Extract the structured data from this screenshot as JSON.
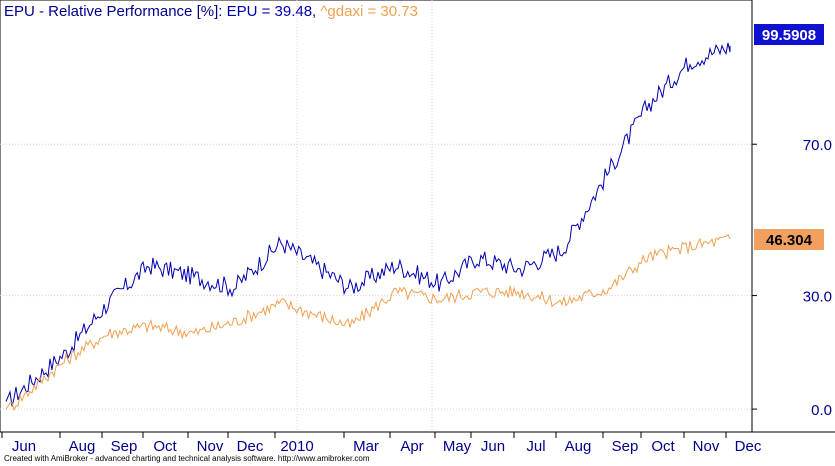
{
  "title": {
    "prefix": "EPU - Relative Performance [%]: ",
    "series1_label": "EPU = 39.48, ",
    "series2_label": "^gdaxi = 30.73"
  },
  "footer": "Created with AmiBroker - advanced charting and technical analysis software. http://www.amibroker.com",
  "colors": {
    "epu": "#0000b0",
    "gdaxi": "#f0a050",
    "axis_text": "#00008b",
    "grid": "#f0c8c8"
  },
  "chart_data": {
    "type": "line",
    "title": "EPU - Relative Performance [%]",
    "x_tick_labels": [
      "Jun",
      "Aug",
      "Sep",
      "Oct",
      "Nov",
      "Dec",
      "2010",
      "Mar",
      "Apr",
      "May",
      "Jun",
      "Jul",
      "Aug",
      "Sep",
      "Oct",
      "Nov",
      "Dec"
    ],
    "y_ticks": [
      0.0,
      30.0,
      70.0
    ],
    "y_tick_labels": [
      "0.0",
      "30.0",
      "70.0"
    ],
    "ylim": [
      -5,
      106
    ],
    "grid": true,
    "series": [
      {
        "name": "EPU",
        "last_value_label": "99.5908",
        "x": [
          "Jun",
          "Aug",
          "Sep",
          "Oct",
          "Nov",
          "Dec",
          "2010",
          "Mar",
          "Apr",
          "May",
          "Jun",
          "Jul",
          "Aug",
          "Sep",
          "Oct",
          "Nov",
          "Dec"
        ],
        "values": [
          2,
          15,
          28,
          38,
          35,
          32,
          44,
          32,
          38,
          33,
          40,
          37,
          42,
          63,
          80,
          92,
          96
        ]
      },
      {
        "name": "^gdaxi",
        "last_value_label": "46.304",
        "x": [
          "Jun",
          "Aug",
          "Sep",
          "Oct",
          "Nov",
          "Dec",
          "2010",
          "Mar",
          "Apr",
          "May",
          "Jun",
          "Jul",
          "Aug",
          "Sep",
          "Oct",
          "Nov",
          "Dec"
        ],
        "values": [
          0,
          13,
          20,
          22,
          20,
          23,
          28,
          22,
          31,
          29,
          31,
          31,
          28,
          32,
          40,
          43,
          45
        ]
      }
    ]
  }
}
